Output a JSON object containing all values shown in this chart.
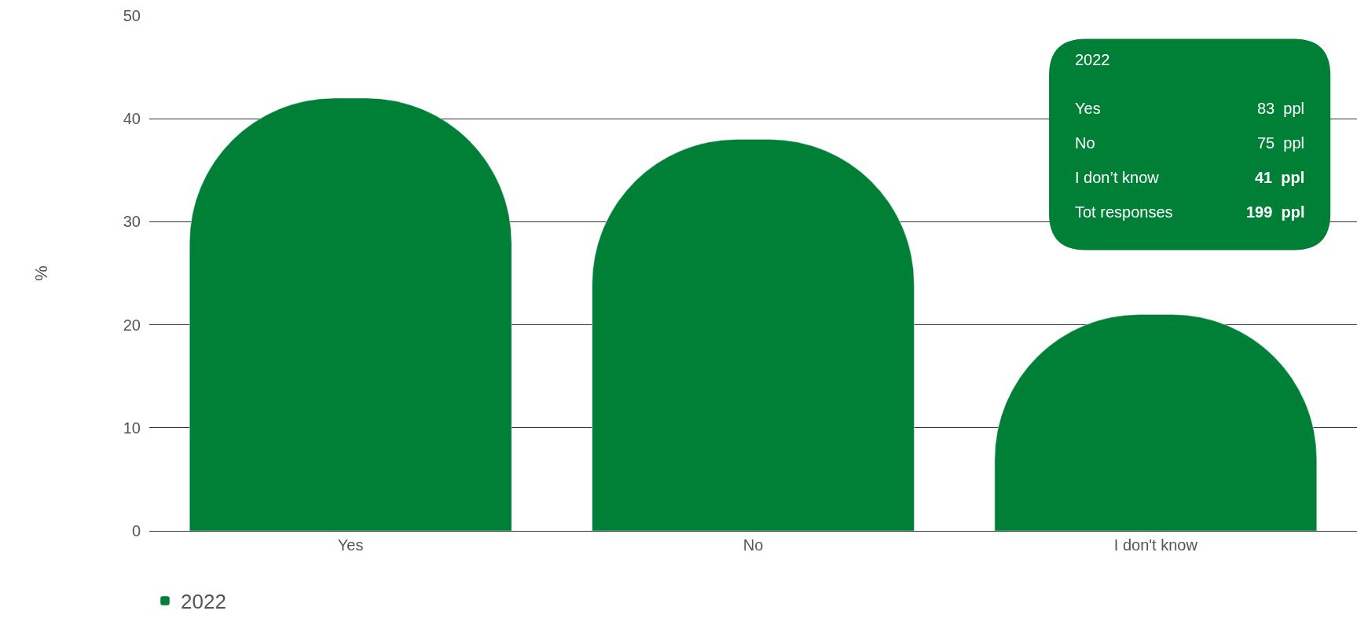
{
  "chart_data": {
    "type": "bar",
    "ylabel": "%",
    "categories": [
      "Yes",
      "No",
      "I don't know"
    ],
    "series": [
      {
        "name": "2022",
        "color": "#007f36",
        "values": [
          42,
          38,
          21
        ]
      }
    ],
    "ylim": [
      0,
      50
    ],
    "yticks": [
      0,
      10,
      20,
      30,
      40,
      50
    ],
    "grid": "y",
    "legend": "bottom left",
    "annotations": [
      "2022",
      "Yes",
      "83  ppl",
      "No",
      "75  ppl",
      "I don’t know",
      "41  ppl",
      "Tot responses",
      "199  ppl"
    ]
  }
}
